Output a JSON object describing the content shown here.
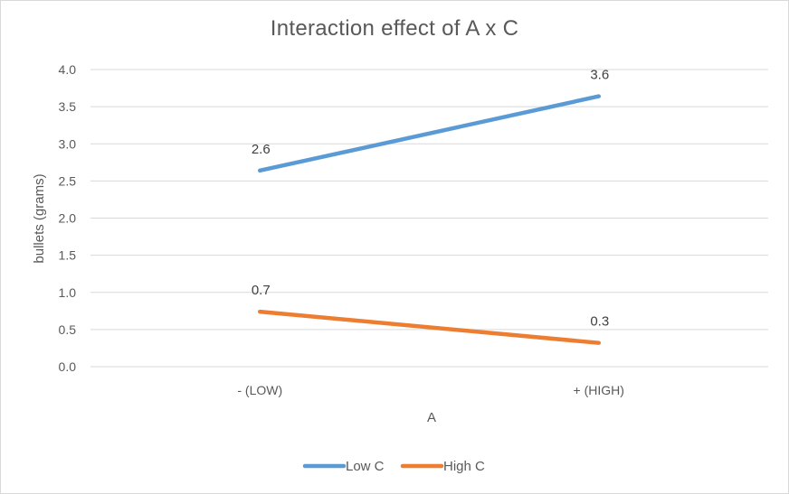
{
  "chart_data": {
    "type": "line",
    "title": "Interaction effect of A x C",
    "xlabel": "A",
    "ylabel": "bullets (grams)",
    "categories": [
      "- (LOW)",
      "+ (HIGH)"
    ],
    "ylim": [
      0,
      4
    ],
    "yticks": [
      "0.0",
      "0.5",
      "1.0",
      "1.5",
      "2.0",
      "2.5",
      "3.0",
      "3.5",
      "4.0"
    ],
    "grid": true,
    "legend_position": "bottom",
    "series": [
      {
        "name": "Low C",
        "values": [
          2.64,
          3.64
        ],
        "labels": [
          "2.6",
          "3.6"
        ],
        "color": "#5b9bd5"
      },
      {
        "name": "High C",
        "values": [
          0.74,
          0.32
        ],
        "labels": [
          "0.7",
          "0.3"
        ],
        "color": "#ed7d31"
      }
    ]
  }
}
